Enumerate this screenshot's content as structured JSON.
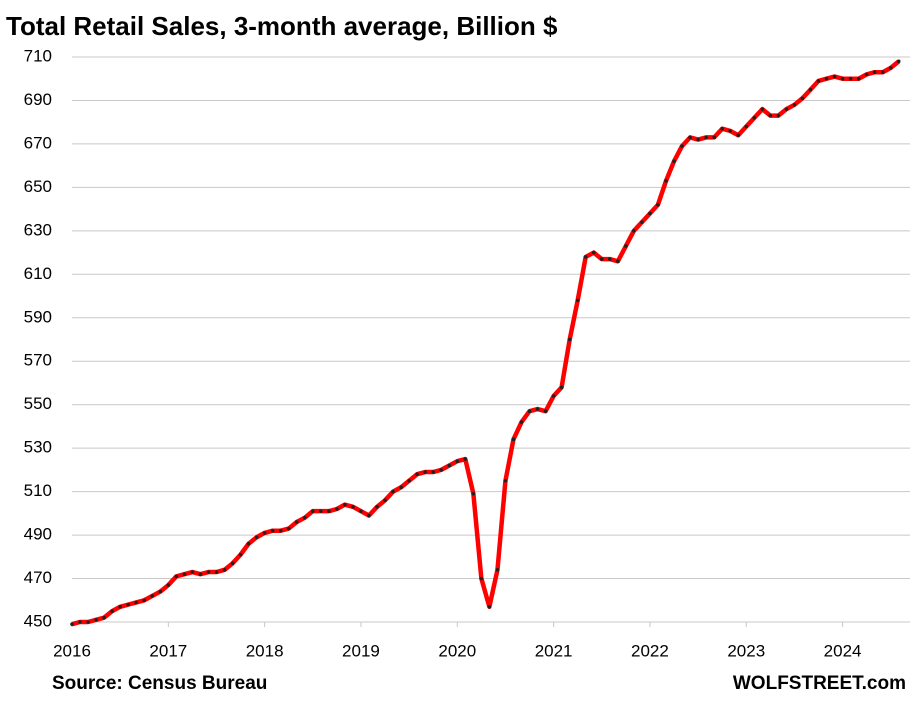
{
  "chart_data": {
    "type": "line",
    "title": "Total Retail Sales, 3-month average, Billion $",
    "source": "Source: Census Bureau",
    "brand": "WOLFSTREET.com",
    "x": [
      2016,
      2016.083,
      2016.167,
      2016.25,
      2016.333,
      2016.417,
      2016.5,
      2016.583,
      2016.667,
      2016.75,
      2016.833,
      2016.917,
      2017,
      2017.083,
      2017.167,
      2017.25,
      2017.333,
      2017.417,
      2017.5,
      2017.583,
      2017.667,
      2017.75,
      2017.833,
      2017.917,
      2018,
      2018.083,
      2018.167,
      2018.25,
      2018.333,
      2018.417,
      2018.5,
      2018.583,
      2018.667,
      2018.75,
      2018.833,
      2018.917,
      2019,
      2019.083,
      2019.167,
      2019.25,
      2019.333,
      2019.417,
      2019.5,
      2019.583,
      2019.667,
      2019.75,
      2019.833,
      2019.917,
      2020,
      2020.083,
      2020.167,
      2020.25,
      2020.333,
      2020.417,
      2020.5,
      2020.583,
      2020.667,
      2020.75,
      2020.833,
      2020.917,
      2021,
      2021.083,
      2021.167,
      2021.25,
      2021.333,
      2021.417,
      2021.5,
      2021.583,
      2021.667,
      2021.75,
      2021.833,
      2021.917,
      2022,
      2022.083,
      2022.167,
      2022.25,
      2022.333,
      2022.417,
      2022.5,
      2022.583,
      2022.667,
      2022.75,
      2022.833,
      2022.917,
      2023,
      2023.083,
      2023.167,
      2023.25,
      2023.333,
      2023.417,
      2023.5,
      2023.583,
      2023.667,
      2023.75,
      2023.833,
      2023.917,
      2024,
      2024.083,
      2024.167,
      2024.25,
      2024.333,
      2024.417,
      2024.5,
      2024.583
    ],
    "series": [
      {
        "name": "Total Retail Sales",
        "color": "#ff0000",
        "marker_color": "#222222",
        "values": [
          449,
          450,
          450,
          451,
          452,
          455,
          457,
          458,
          459,
          460,
          462,
          464,
          467,
          471,
          472,
          473,
          472,
          473,
          473,
          474,
          477,
          481,
          486,
          489,
          491,
          492,
          492,
          493,
          496,
          498,
          501,
          501,
          501,
          502,
          504,
          503,
          501,
          499,
          503,
          506,
          510,
          512,
          515,
          518,
          519,
          519,
          520,
          522,
          524,
          525,
          509,
          470,
          457,
          474,
          515,
          534,
          542,
          547,
          548,
          547,
          554,
          558,
          580,
          598,
          618,
          620,
          617,
          617,
          616,
          623,
          630,
          634,
          638,
          642,
          653,
          662,
          669,
          673,
          672,
          673,
          673,
          677,
          676,
          674,
          678,
          682,
          686,
          683,
          683,
          686,
          688,
          691,
          695,
          699,
          700,
          701,
          700,
          700,
          700,
          702,
          703,
          703,
          705,
          708
        ]
      }
    ],
    "xlim": [
      2016,
      2024.7
    ],
    "xticks": [
      2016,
      2017,
      2018,
      2019,
      2020,
      2021,
      2022,
      2023,
      2024
    ],
    "ylim": [
      450,
      710
    ],
    "yticks": [
      450,
      470,
      490,
      510,
      530,
      550,
      570,
      590,
      610,
      630,
      650,
      670,
      690,
      710
    ],
    "grid": true
  }
}
